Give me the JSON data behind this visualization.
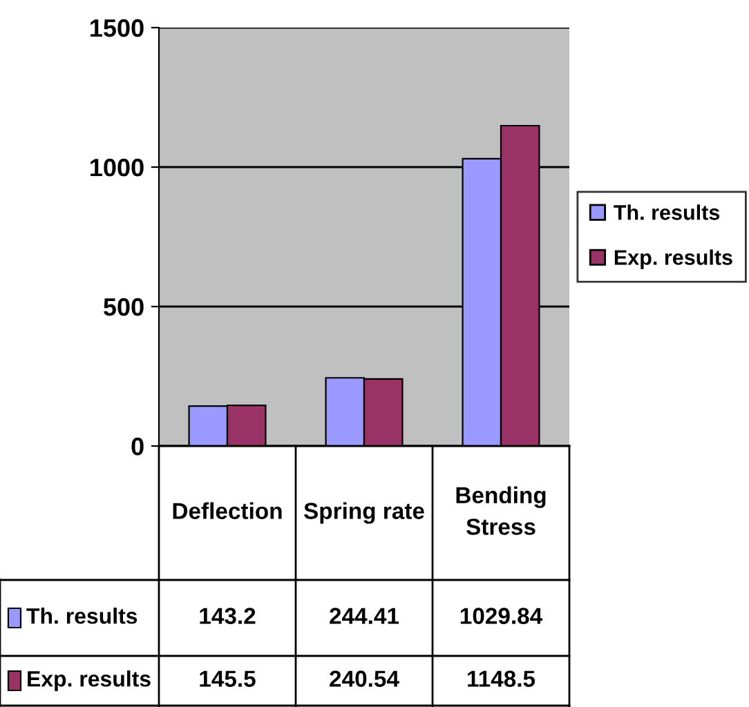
{
  "chart_data": {
    "type": "bar",
    "categories": [
      "Deflection",
      "Spring rate",
      "Bending Stress"
    ],
    "series": [
      {
        "name": "Th. results",
        "color": "#9999ff",
        "values": [
          143.2,
          244.41,
          1029.84
        ]
      },
      {
        "name": "Exp. results",
        "color": "#993366",
        "values": [
          145.5,
          240.54,
          1148.5
        ]
      }
    ],
    "ylim": [
      0,
      1500
    ],
    "yticks": [
      0,
      500,
      1000,
      1500
    ],
    "grid": "y",
    "legend": "right",
    "data_labels": true
  }
}
